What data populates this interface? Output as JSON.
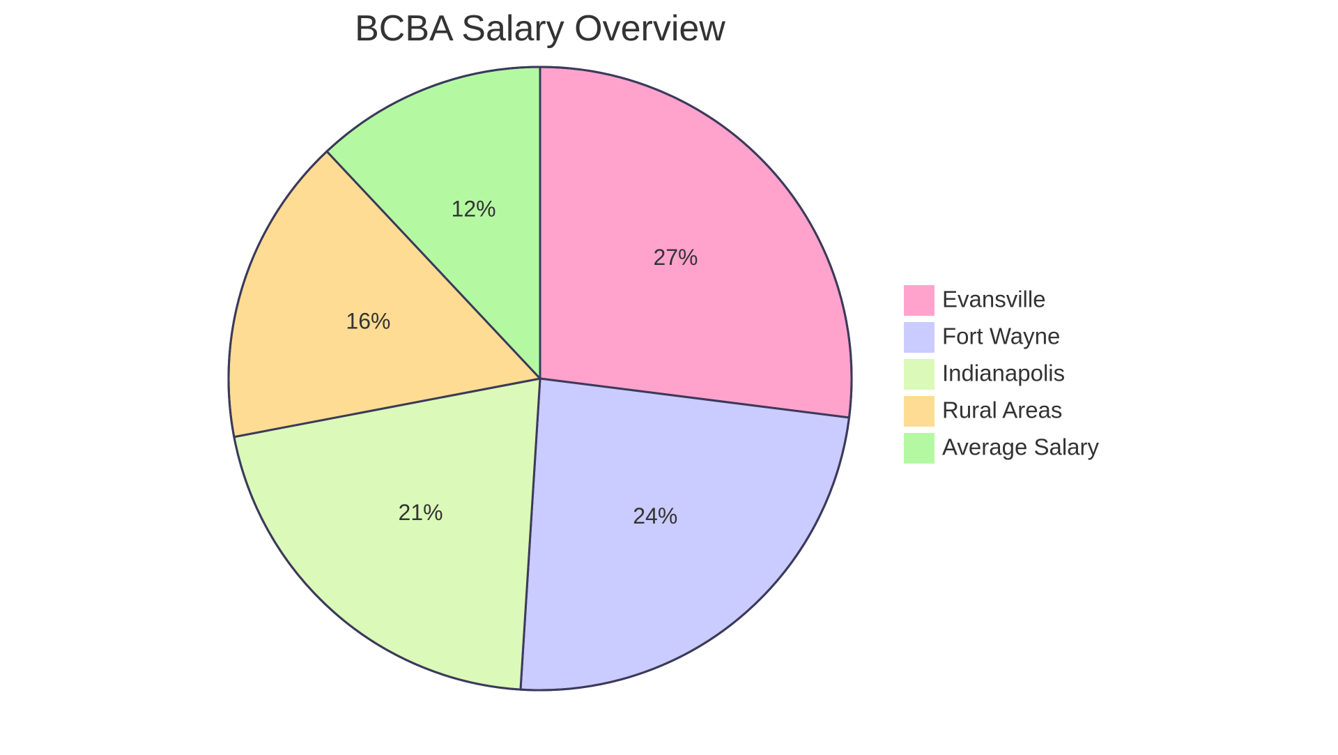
{
  "chart_data": {
    "type": "pie",
    "title": "BCBA Salary Overview",
    "categories": [
      "Evansville",
      "Fort Wayne",
      "Indianapolis",
      "Rural Areas",
      "Average Salary"
    ],
    "values": [
      27,
      24,
      21,
      16,
      12
    ],
    "value_labels": [
      "27%",
      "24%",
      "21%",
      "16%",
      "12%"
    ],
    "colors": [
      "#ffa3cd",
      "#cacbff",
      "#dbf9b8",
      "#ffdc94",
      "#b4f9a2"
    ],
    "legend_position": "right",
    "start": "top, clockwise"
  }
}
